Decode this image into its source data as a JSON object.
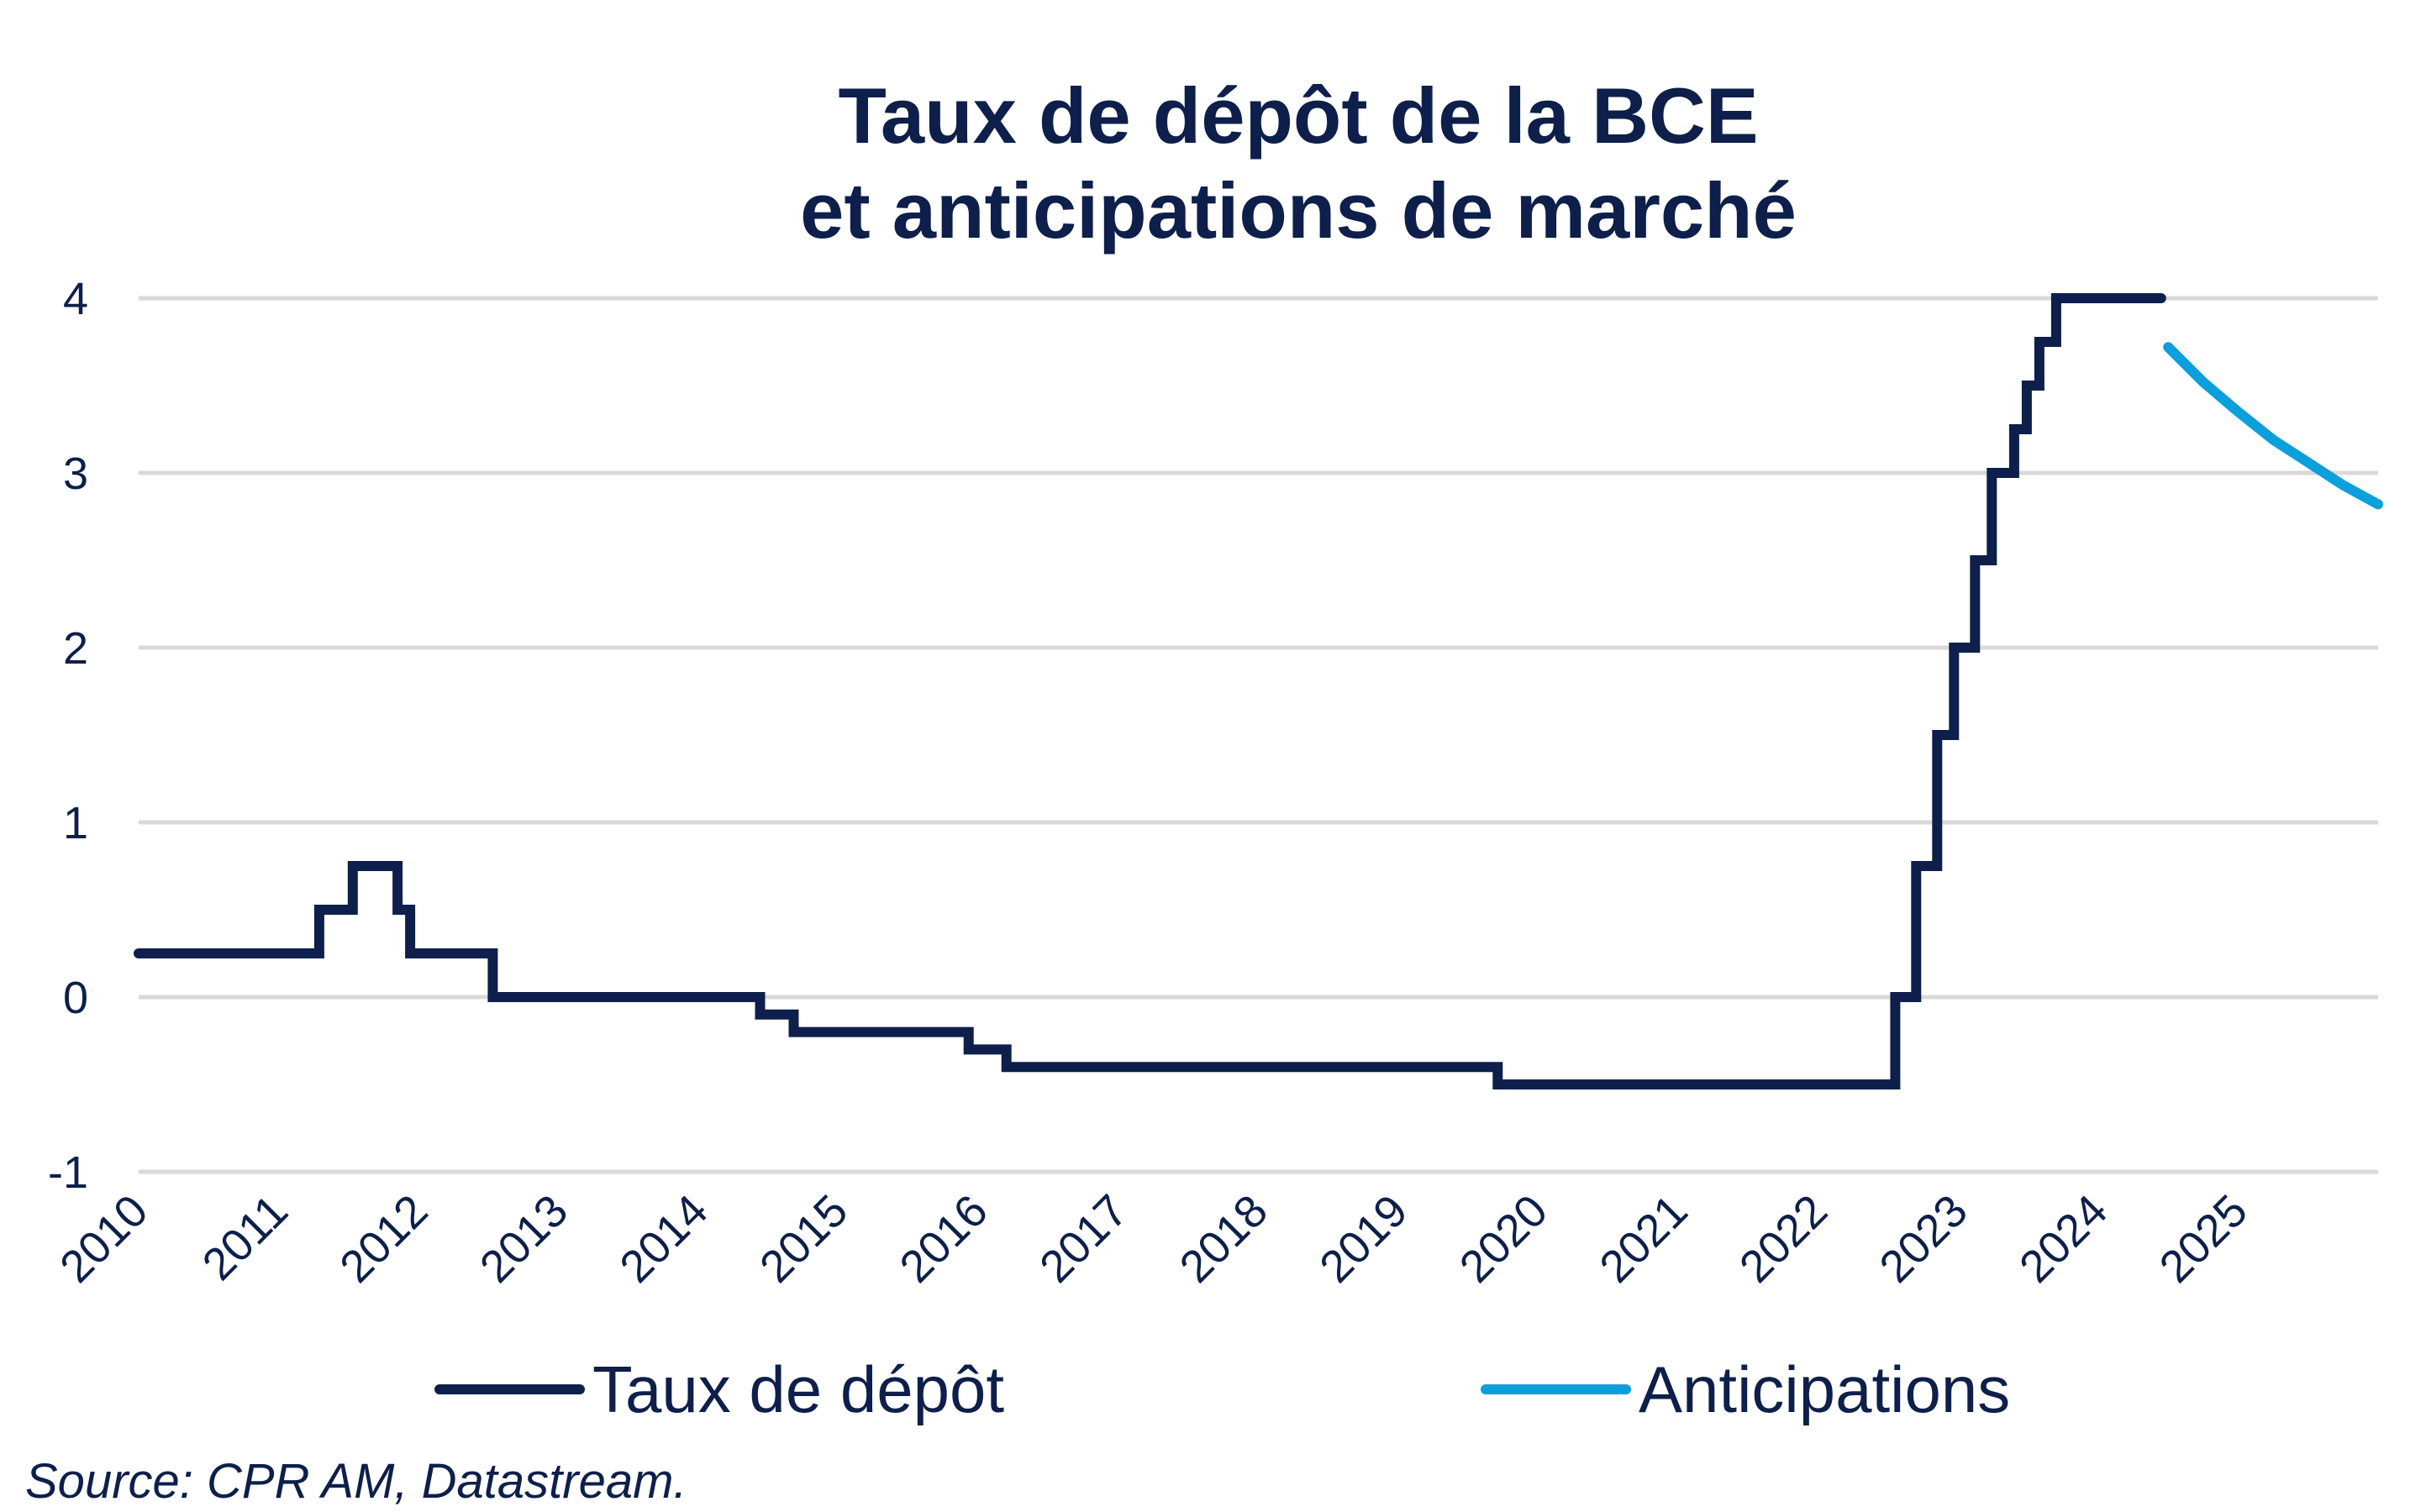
{
  "chart_data": {
    "type": "line",
    "title_lines": [
      "Taux de dépôt de la BCE",
      "et anticipations de marché"
    ],
    "source": "Source: CPR AM, Datastream.",
    "y_ticks": [
      "4",
      "3",
      "2",
      "1",
      "0",
      "-1"
    ],
    "ylim": [
      -1,
      4
    ],
    "x_ticks": [
      "2010",
      "2011",
      "2012",
      "2013",
      "2014",
      "2015",
      "2016",
      "2017",
      "2018",
      "2019",
      "2020",
      "2021",
      "2022",
      "2023",
      "2024",
      "2025"
    ],
    "xlim": [
      2010,
      2026
    ],
    "grid": true,
    "legend_position": "bottom",
    "series": [
      {
        "name": "Taux de dépôt",
        "color": "#0d1f4a",
        "style": "step",
        "steps": [
          [
            2010.0,
            0.25
          ],
          [
            2011.29,
            0.5
          ],
          [
            2011.53,
            0.75
          ],
          [
            2011.85,
            0.5
          ],
          [
            2011.94,
            0.25
          ],
          [
            2012.53,
            0.0
          ],
          [
            2014.44,
            -0.1
          ],
          [
            2014.68,
            -0.2
          ],
          [
            2015.93,
            -0.3
          ],
          [
            2016.2,
            -0.4
          ],
          [
            2019.71,
            -0.5
          ],
          [
            2022.55,
            0.0
          ],
          [
            2022.7,
            0.75
          ],
          [
            2022.85,
            1.5
          ],
          [
            2022.97,
            2.0
          ],
          [
            2023.12,
            2.5
          ],
          [
            2023.24,
            3.0
          ],
          [
            2023.4,
            3.25
          ],
          [
            2023.49,
            3.5
          ],
          [
            2023.58,
            3.75
          ],
          [
            2023.7,
            4.0
          ]
        ],
        "end_x": 2024.45
      },
      {
        "name": "Anticipations",
        "color": "#0b9fdb",
        "style": "line",
        "x": [
          2024.5,
          2024.75,
          2025.0,
          2025.25,
          2025.5,
          2025.75,
          2026.0
        ],
        "y": [
          3.72,
          3.52,
          3.35,
          3.19,
          3.06,
          2.93,
          2.82
        ]
      }
    ]
  }
}
